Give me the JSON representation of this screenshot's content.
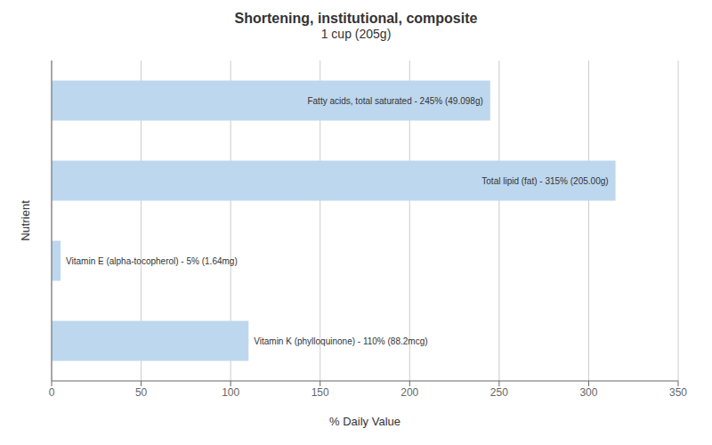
{
  "chart_data": {
    "type": "bar",
    "title": "Shortening, institutional, composite",
    "subtitle": "1 cup (205g)",
    "x_label": "% Daily Value",
    "y_label": "Nutrient",
    "orientation": "horizontal",
    "categories": [
      "Vitamin K (phylloquinone)",
      "Vitamin E (alpha-tocopherol)",
      "Total lipid (fat)",
      "Fatty acids, total saturated"
    ],
    "values": [
      110,
      5,
      315,
      245
    ],
    "value_labels": [
      "Vitamin K (phylloquinone) - 110% (88.2mcg)",
      "Vitamin E (alpha-tocopherol) - 5% (1.64mg)",
      "Total lipid (fat) - 315% (205.00g)",
      "Fatty acids, total saturated - 245% (49.098g)"
    ],
    "data_labels": true,
    "color": "#bdd7ee",
    "xlim": [
      0,
      350
    ],
    "xticks": [
      0,
      50,
      100,
      150,
      200,
      250,
      300,
      350
    ],
    "grid": true,
    "tick_labels": "x"
  }
}
